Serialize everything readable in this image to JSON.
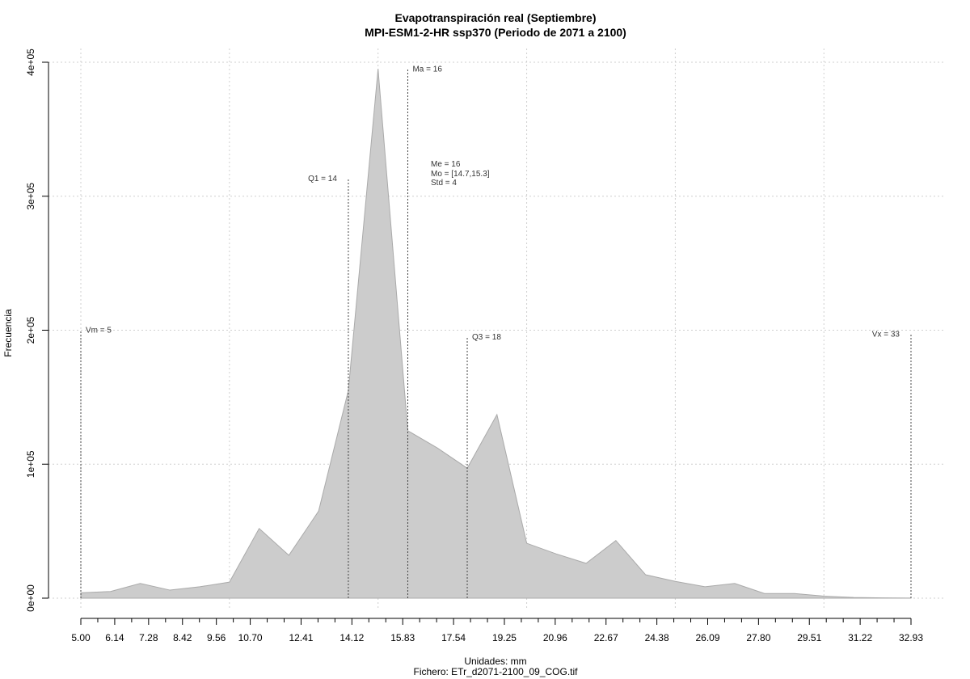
{
  "chart_data": {
    "type": "area",
    "title": "Evapotranspiración real (Septiembre)",
    "subtitle": "MPI-ESM1-2-HR ssp370 (Periodo de 2071 a 2100)",
    "xlabel": "Unidades: mm",
    "caption": "Fichero: ETr_d2071-2100_09_COG.tif",
    "ylabel": "Frecuencia",
    "xlim": [
      5.0,
      32.93
    ],
    "ylim": [
      0,
      400000
    ],
    "x_tick_labels": [
      "5.00",
      "6.14",
      "7.28",
      "8.42",
      "9.56",
      "10.70",
      "12.41",
      "14.12",
      "15.83",
      "17.54",
      "19.25",
      "20.96",
      "22.67",
      "24.38",
      "26.09",
      "27.80",
      "29.51",
      "31.22",
      "32.93"
    ],
    "y_ticks": [
      {
        "value": 0,
        "label": "0e+00"
      },
      {
        "value": 100000,
        "label": "1e+05"
      },
      {
        "value": 200000,
        "label": "2e+05"
      },
      {
        "value": 300000,
        "label": "3e+05"
      },
      {
        "value": 400000,
        "label": "4e+05"
      }
    ],
    "grid": true,
    "fill_color": "#cccccc",
    "line_color": "#aaaaaa",
    "series": [
      {
        "x": [
          5.0,
          6.0,
          7.0,
          8.0,
          9.0,
          10.0,
          11.0,
          12.0,
          13.0,
          14.0,
          15.0,
          16.0,
          17.0,
          18.0,
          19.0,
          20.0,
          21.0,
          22.0,
          23.0,
          24.0,
          25.0,
          26.0,
          27.0,
          28.0,
          29.0,
          30.0,
          31.0,
          32.0,
          32.93
        ],
        "values": [
          4000,
          5000,
          11000,
          6000,
          8500,
          12000,
          52000,
          32000,
          65000,
          155000,
          395000,
          125000,
          112000,
          97000,
          137000,
          41000,
          33000,
          26000,
          43000,
          17500,
          12500,
          8500,
          11000,
          3500,
          3500,
          1500,
          500,
          200,
          100
        ]
      }
    ],
    "reference_lines": [
      {
        "x": 5.0,
        "label": "Vm = 5",
        "y_top": 200000,
        "label_side": "right"
      },
      {
        "x": 14.0,
        "label": "Q1 = 14",
        "y_top": 313000,
        "label_side": "left"
      },
      {
        "x": 16.0,
        "label": "Ma = 16",
        "y_top": 395000,
        "label_side": "right"
      },
      {
        "x": 18.0,
        "label": "Q3 = 18",
        "y_top": 195000,
        "label_side": "right"
      },
      {
        "x": 32.93,
        "label": "Vx = 33",
        "y_top": 197000,
        "label_side": "left"
      }
    ],
    "stats": [
      "Me = 16",
      "Mo = [14.7,15.3]",
      "Std = 4"
    ]
  }
}
